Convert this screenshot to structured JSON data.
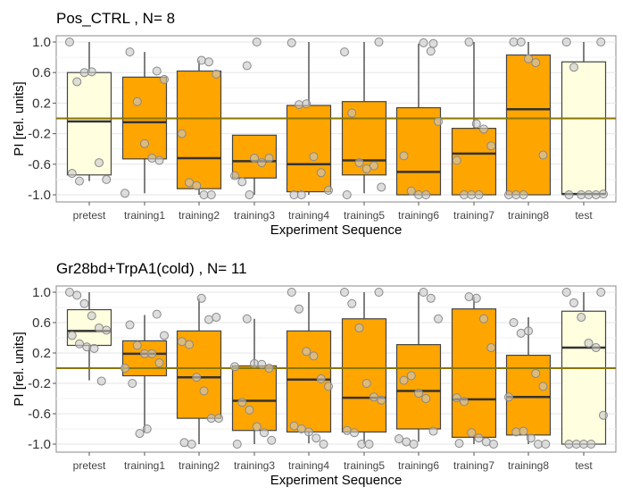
{
  "chart_data": [
    {
      "type": "box",
      "title": "Pos_CTRL , N= 8",
      "xlabel": "Experiment Sequence",
      "ylabel": "PI [rel. units]",
      "ylim": [
        -1.1,
        1.1
      ],
      "yticks": [
        1.0,
        0.6,
        0.2,
        -0.2,
        -0.6,
        -1.0
      ],
      "ytick_labels": [
        "1.0",
        "0.6",
        "0.2",
        "-0.2",
        "-0.6",
        "-1.0"
      ],
      "reference_line": 0.0,
      "grid": true,
      "categories": [
        "pretest",
        "training1",
        "training2",
        "training3",
        "training4",
        "training5",
        "training6",
        "training7",
        "training8",
        "test"
      ],
      "fills": [
        "#FFFFE0",
        "#FFA500",
        "#FFA500",
        "#FFA500",
        "#FFA500",
        "#FFA500",
        "#FFA500",
        "#FFA500",
        "#FFA500",
        "#FFFFE0"
      ],
      "boxes": [
        {
          "lo": -0.82,
          "q1": -0.74,
          "med": -0.04,
          "q3": 0.6,
          "hi": 1.0,
          "points": [
            1.0,
            0.48,
            0.6,
            0.61,
            -0.58,
            -0.8,
            -0.72,
            -0.82
          ]
        },
        {
          "lo": -0.98,
          "q1": -0.53,
          "med": -0.05,
          "q3": 0.54,
          "hi": 0.87,
          "points": [
            0.62,
            0.51,
            0.87,
            0.22,
            -0.33,
            -0.52,
            -0.55,
            -0.98
          ]
        },
        {
          "lo": -1.0,
          "q1": -0.92,
          "med": -0.52,
          "q3": 0.62,
          "hi": 0.76,
          "points": [
            0.76,
            0.74,
            0.58,
            -0.2,
            -0.84,
            -0.88,
            -1.0,
            -1.0
          ]
        },
        {
          "lo": -1.0,
          "q1": -0.78,
          "med": -0.56,
          "q3": -0.22,
          "hi": -0.22,
          "points": [
            0.69,
            -0.52,
            -0.58,
            -0.52,
            -0.75,
            -0.83,
            -1.0,
            1.0
          ]
        },
        {
          "lo": -1.0,
          "q1": -0.96,
          "med": -0.6,
          "q3": 0.17,
          "hi": 1.0,
          "points": [
            0.99,
            0.18,
            0.19,
            -0.5,
            -0.71,
            -0.94,
            -1.0,
            -1.0
          ]
        },
        {
          "lo": -0.98,
          "q1": -0.74,
          "med": -0.55,
          "q3": 0.22,
          "hi": 1.0,
          "points": [
            1.0,
            0.87,
            0.07,
            -0.58,
            -0.66,
            -0.62,
            -0.9,
            -1.0
          ]
        },
        {
          "lo": -1.0,
          "q1": -1.0,
          "med": -0.7,
          "q3": 0.14,
          "hi": 0.98,
          "points": [
            0.99,
            0.88,
            -0.04,
            -0.49,
            -0.95,
            -1.0,
            -1.0,
            0.98
          ]
        },
        {
          "lo": -1.0,
          "q1": -1.0,
          "med": -0.46,
          "q3": -0.13,
          "hi": 1.0,
          "points": [
            1.0,
            -0.07,
            -0.14,
            -0.36,
            -0.55,
            -1.0,
            -1.0,
            -1.0
          ]
        },
        {
          "lo": -1.0,
          "q1": -1.0,
          "med": 0.12,
          "q3": 0.83,
          "hi": 1.0,
          "points": [
            1.0,
            1.0,
            0.78,
            0.73,
            -0.48,
            -1.0,
            -1.0,
            -1.0
          ]
        },
        {
          "lo": -0.99,
          "q1": -0.99,
          "med": -0.99,
          "q3": 0.74,
          "hi": 1.0,
          "points": [
            1.0,
            1.0,
            0.67,
            -1.0,
            -1.0,
            -1.0,
            -0.99,
            -1.0
          ]
        }
      ]
    },
    {
      "type": "box",
      "title": "Gr28bd+TrpA1(cold) , N= 11",
      "xlabel": "Experiment Sequence",
      "ylabel": "PI [rel. units]",
      "ylim": [
        -1.1,
        1.1
      ],
      "yticks": [
        1.0,
        0.6,
        0.2,
        -0.2,
        -0.6,
        -1.0
      ],
      "ytick_labels": [
        "1.0",
        "0.6",
        "0.2",
        "-0.2",
        "-0.6",
        "-1.0"
      ],
      "reference_line": 0.0,
      "grid": true,
      "categories": [
        "pretest",
        "training1",
        "training2",
        "training3",
        "training4",
        "training5",
        "training6",
        "training7",
        "training8",
        "test"
      ],
      "fills": [
        "#FFFFE0",
        "#FFA500",
        "#FFA500",
        "#FFA500",
        "#FFA500",
        "#FFA500",
        "#FFA500",
        "#FFA500",
        "#FFA500",
        "#FFFFE0"
      ],
      "boxes": [
        {
          "lo": -0.16,
          "q1": 0.3,
          "med": 0.49,
          "q3": 0.77,
          "hi": 1.0,
          "points": [
            1.0,
            0.96,
            0.85,
            0.69,
            0.53,
            0.5,
            0.43,
            0.32,
            0.28,
            0.26,
            -0.17
          ]
        },
        {
          "lo": -0.85,
          "q1": -0.1,
          "med": 0.19,
          "q3": 0.36,
          "hi": 0.7,
          "points": [
            0.71,
            0.43,
            0.57,
            0.3,
            0.19,
            0.19,
            0.07,
            0.0,
            -0.2,
            -0.86,
            -0.8
          ]
        },
        {
          "lo": -1.0,
          "q1": -0.66,
          "med": -0.12,
          "q3": 0.49,
          "hi": 0.92,
          "points": [
            0.92,
            0.64,
            0.67,
            0.35,
            0.31,
            -0.12,
            -0.3,
            -0.66,
            -0.66,
            -0.98,
            -1.0
          ]
        },
        {
          "lo": -1.0,
          "q1": -0.82,
          "med": -0.43,
          "q3": 0.03,
          "hi": 0.65,
          "points": [
            0.65,
            0.06,
            0.05,
            -0.0,
            0.02,
            -0.45,
            -0.55,
            -0.77,
            -0.85,
            -0.95,
            -1.0
          ]
        },
        {
          "lo": -0.99,
          "q1": -0.84,
          "med": -0.15,
          "q3": 0.49,
          "hi": 1.0,
          "points": [
            1.0,
            0.78,
            0.22,
            0.16,
            -0.14,
            -0.24,
            -0.76,
            -0.8,
            -0.84,
            -0.92,
            -1.0
          ]
        },
        {
          "lo": -1.0,
          "q1": -0.84,
          "med": -0.39,
          "q3": 0.65,
          "hi": 1.0,
          "points": [
            1.0,
            1.0,
            0.85,
            0.53,
            -0.2,
            -0.38,
            -0.42,
            -0.82,
            -0.85,
            -1.0,
            -1.0
          ]
        },
        {
          "lo": -0.97,
          "q1": -0.8,
          "med": -0.3,
          "q3": 0.31,
          "hi": 1.0,
          "points": [
            1.0,
            0.92,
            0.65,
            -0.16,
            -0.1,
            -0.33,
            -0.4,
            -0.83,
            -0.93,
            -0.97,
            -1.0
          ]
        },
        {
          "lo": -1.0,
          "q1": -0.91,
          "med": -0.41,
          "q3": 0.78,
          "hi": 0.94,
          "points": [
            0.94,
            0.92,
            0.65,
            0.27,
            -0.39,
            -0.44,
            -0.85,
            -0.92,
            -0.97,
            -1.0,
            -0.99
          ]
        },
        {
          "lo": -1.0,
          "q1": -0.88,
          "med": -0.38,
          "q3": 0.17,
          "hi": 0.67,
          "points": [
            0.6,
            0.46,
            0.49,
            -0.07,
            -0.24,
            -0.38,
            -0.84,
            -0.83,
            -0.92,
            -1.0,
            -1.0
          ]
        },
        {
          "lo": -1.0,
          "q1": -1.0,
          "med": 0.27,
          "q3": 0.75,
          "hi": 1.0,
          "points": [
            1.0,
            1.0,
            0.86,
            0.67,
            0.33,
            0.27,
            -0.62,
            -1.0,
            -1.0,
            -1.0,
            -1.0
          ]
        }
      ]
    }
  ]
}
